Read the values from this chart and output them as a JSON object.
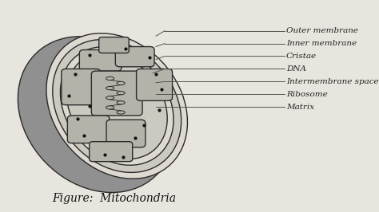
{
  "title": "Figure:  Mitochondria",
  "title_fontsize": 10,
  "background_color": "#d8d5cc",
  "bg_light": "#e8e5de",
  "labels": [
    "Outer membrane",
    "Inner membrane",
    "Cristae",
    "DNA",
    "Intermembrane space",
    "Ribosome",
    "Matrix"
  ],
  "label_fontsize": 7.5,
  "label_color": "#222222",
  "outline_color": "#2a2a2a",
  "fill_outer_shadow": "#909090",
  "fill_outer_membrane": "#b8b5ae",
  "fill_white_space": "#dedad2",
  "fill_inner_membrane": "#c5c2ba",
  "fill_matrix": "#ccc9c0",
  "fill_cristae": "#b5b2aa",
  "dot_color": "#111111"
}
